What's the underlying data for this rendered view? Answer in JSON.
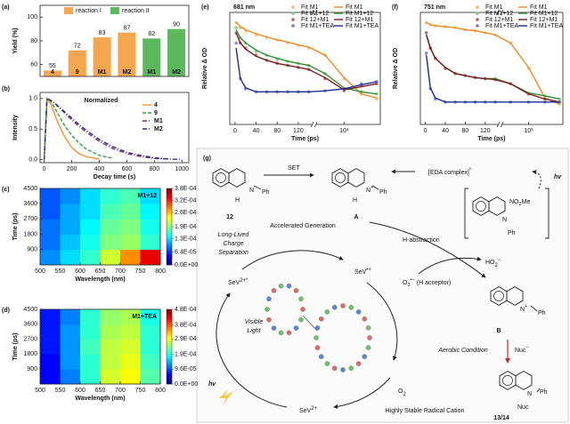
{
  "chart_data": [
    {
      "type": "bar",
      "label": "(a)",
      "ylabel": "Yield (%)",
      "categories": [
        "4",
        "9",
        "M1",
        "M2",
        "M1",
        "M2"
      ],
      "series": [
        {
          "name": "reaction I",
          "color": "#f7a650",
          "values": [
            55,
            72,
            83,
            87,
            null,
            null
          ]
        },
        {
          "name": "reaction II",
          "color": "#5cb85c",
          "values": [
            null,
            null,
            null,
            null,
            82,
            90
          ]
        }
      ],
      "ylim": [
        50,
        110
      ],
      "yticks": [
        60,
        80,
        100
      ],
      "legend": "top-right",
      "legend_columns": 2
    },
    {
      "type": "line",
      "label": "(b)",
      "xlabel": "Decay time (s)",
      "ylabel": "Intensity",
      "annotation": "Normalized",
      "x": [
        0,
        20,
        50,
        100,
        150,
        200,
        250,
        300,
        400,
        500,
        600,
        700,
        800,
        900,
        1000
      ],
      "series": [
        {
          "name": "4",
          "color": "#f0922b",
          "dash": "solid",
          "values": [
            0,
            1,
            0.9,
            0.6,
            0.37,
            0.2,
            0.1,
            0.05,
            0.01,
            null,
            null,
            null,
            null,
            null,
            null
          ]
        },
        {
          "name": "9",
          "color": "#2e9e3e",
          "dash": "dashed",
          "values": [
            0,
            1,
            0.95,
            0.75,
            0.55,
            0.4,
            0.28,
            0.18,
            0.07,
            0.02,
            null,
            null,
            null,
            null,
            null
          ]
        },
        {
          "name": "M1",
          "color": "#7b2a6e",
          "dash": "dashdot",
          "values": [
            0,
            1,
            0.97,
            0.87,
            0.76,
            0.65,
            0.55,
            0.46,
            0.3,
            0.18,
            0.1,
            0.05,
            0.02,
            0.01,
            null
          ]
        },
        {
          "name": "M2",
          "color": "#2c2c8c",
          "dash": "dashdot",
          "values": [
            0,
            1,
            0.97,
            0.88,
            0.78,
            0.68,
            0.58,
            0.49,
            0.33,
            0.21,
            0.12,
            0.07,
            0.03,
            0.01,
            0
          ]
        }
      ],
      "xlim": [
        -30,
        1050
      ],
      "xticks": [
        0,
        200,
        400,
        600,
        800,
        1000
      ],
      "ylim": [
        -0.05,
        1.1
      ],
      "yticks": [
        {
          "value": 0,
          "label": "0.0"
        },
        0.5,
        {
          "value": 1,
          "label": "1.0"
        }
      ],
      "legend": "top-right",
      "legend_columns": 1
    },
    {
      "type": "heatmap",
      "label": "(c)",
      "xlabel": "Wavelength (nm)",
      "ylabel": "Time (ps)",
      "annotation": "M1+12",
      "x": [
        525,
        575,
        625,
        675,
        725,
        775
      ],
      "y": [
        450,
        1350,
        2250,
        3150,
        4050
      ],
      "z": [
        [
          0.0001,
          0.00013,
          0.00016,
          0.00022,
          0.00028,
          0.00034
        ],
        [
          9e-05,
          0.00012,
          0.00015,
          0.00019,
          0.0002,
          0.00016
        ],
        [
          9e-05,
          0.00011,
          0.00014,
          0.00018,
          0.00019,
          0.00015
        ],
        [
          8e-05,
          0.00011,
          0.00013,
          0.00017,
          0.00018,
          0.00014
        ],
        [
          8e-05,
          0.0001,
          0.00013,
          0.00016,
          0.00017,
          0.00013
        ]
      ],
      "xlim": [
        500,
        800
      ],
      "xticks": [
        500,
        550,
        600,
        650,
        700,
        750,
        800
      ],
      "ylim": [
        0,
        4500
      ],
      "yticks": [
        900,
        1800,
        2700,
        3600,
        4500
      ],
      "zlim": [
        0,
        0.00038
      ],
      "zticks": [
        {
          "value": 0,
          "label": "0.0E+00"
        },
        {
          "value": 6.4e-05,
          "label": "6.4E-05"
        },
        {
          "value": 0.00013,
          "label": "1.3E-04"
        },
        {
          "value": 0.00019,
          "label": "1.9E-04"
        },
        {
          "value": 0.00026,
          "label": "2.6E-04"
        },
        {
          "value": 0.00032,
          "label": "3.2E-04"
        },
        {
          "value": 0.00038,
          "label": "3.8E-04"
        }
      ]
    },
    {
      "type": "heatmap",
      "label": "(d)",
      "xlabel": "Wavelength (nm)",
      "ylabel": "Time (ps)",
      "annotation": "M1+TEA",
      "x": [
        525,
        575,
        625,
        675,
        725,
        775
      ],
      "y": [
        450,
        1350,
        2250,
        3150,
        4050
      ],
      "z": [
        [
          6e-05,
          0.00012,
          0.0002,
          0.00028,
          0.0003,
          0.00022
        ],
        [
          6e-05,
          0.00013,
          0.0002,
          0.00027,
          0.00029,
          0.00021
        ],
        [
          7e-05,
          0.00013,
          0.00021,
          0.00027,
          0.00028,
          0.0002
        ],
        [
          7e-05,
          0.00013,
          0.0002,
          0.00026,
          0.00027,
          0.0002
        ],
        [
          7e-05,
          0.00012,
          0.0002,
          0.00025,
          0.00026,
          0.00019
        ]
      ],
      "xlim": [
        500,
        800
      ],
      "xticks": [
        500,
        550,
        600,
        650,
        700,
        750,
        800
      ],
      "ylim": [
        0,
        4500
      ],
      "yticks": [
        900,
        1800,
        2700,
        3600,
        4500
      ],
      "zlim": [
        0,
        0.00048
      ],
      "zticks": [
        {
          "value": 0,
          "label": "0.0E+00"
        },
        {
          "value": 9.6e-05,
          "label": "9.6E-05"
        },
        {
          "value": 0.00019,
          "label": "1.9E-04"
        },
        {
          "value": 0.00029,
          "label": "2.9E-04"
        },
        {
          "value": 0.00038,
          "label": "3.8E-04"
        },
        {
          "value": 0.00048,
          "label": "4.8E-04"
        }
      ]
    },
    {
      "type": "line",
      "label": "(e)",
      "xlabel": "Time (ps)",
      "ylabel": "Relative Δ OD",
      "annotation": "681 nm",
      "xscale": "linear-log",
      "xbreak": 150,
      "x": [
        2,
        10,
        20,
        40,
        60,
        80,
        100,
        120,
        140,
        300,
        1000,
        3000,
        8000
      ],
      "series": [
        {
          "name": "Fit M1",
          "style": "markers",
          "color": "#f5b56b",
          "values": [
            1.0,
            0.95,
            0.92,
            0.88,
            0.85,
            0.83,
            0.8,
            0.78,
            0.75,
            0.68,
            0.45,
            0.3,
            0.25
          ]
        },
        {
          "name": "Fit M1+12",
          "style": "markers",
          "color": "#7cc47c",
          "values": [
            0.95,
            0.85,
            0.8,
            0.72,
            0.68,
            0.64,
            0.62,
            0.6,
            0.58,
            0.5,
            0.35,
            0.32,
            0.3
          ]
        },
        {
          "name": "Fit 12+M1",
          "style": "markers",
          "color": "#b06060",
          "values": [
            0.9,
            0.8,
            0.75,
            0.68,
            0.63,
            0.6,
            0.58,
            0.56,
            0.54,
            0.45,
            0.33,
            0.38,
            0.4
          ]
        },
        {
          "name": "Fit M1+TEA",
          "style": "markers",
          "color": "#6f78d0",
          "values": [
            0.8,
            0.45,
            0.35,
            0.32,
            0.32,
            0.32,
            0.32,
            0.32,
            0.32,
            0.33,
            0.35,
            0.4,
            0.42
          ]
        },
        {
          "name": "Fit M1",
          "style": "line",
          "color": "#f08a24",
          "values": [
            1.0,
            0.96,
            0.93,
            0.89,
            0.86,
            0.83,
            0.81,
            0.78,
            0.76,
            0.68,
            0.46,
            0.3,
            0.26
          ]
        },
        {
          "name": "Fit M1+12",
          "style": "line",
          "color": "#2f8f2f",
          "values": [
            0.93,
            0.85,
            0.8,
            0.73,
            0.68,
            0.65,
            0.62,
            0.6,
            0.58,
            0.5,
            0.36,
            0.32,
            0.3
          ]
        },
        {
          "name": "Fit 12+M1",
          "style": "line",
          "color": "#7a1a1a",
          "values": [
            0.9,
            0.8,
            0.74,
            0.67,
            0.63,
            0.6,
            0.58,
            0.56,
            0.54,
            0.46,
            0.34,
            0.37,
            0.4
          ]
        },
        {
          "name": "Fit M1+TEA",
          "style": "line",
          "color": "#1f2a8f",
          "values": [
            0.75,
            0.45,
            0.36,
            0.32,
            0.32,
            0.32,
            0.32,
            0.32,
            0.32,
            0.33,
            0.35,
            0.39,
            0.42
          ]
        }
      ],
      "xlim": [
        -10,
        10000
      ],
      "xticks": [
        0,
        40,
        80,
        120,
        {
          "value": 1000,
          "label": "10³"
        }
      ],
      "ylim": [
        0,
        1.1
      ],
      "legend": "top-right",
      "legend_columns": 2
    },
    {
      "type": "line",
      "label": "(f)",
      "xlabel": "Time (ps)",
      "ylabel": "Relative Δ OD",
      "annotation": "751 nm",
      "xscale": "linear-log",
      "xbreak": 150,
      "x": [
        2,
        10,
        20,
        40,
        60,
        80,
        100,
        120,
        140,
        300,
        1000,
        3000,
        8000
      ],
      "series": [
        {
          "name": "Fit M1",
          "style": "markers",
          "color": "#f5b56b",
          "values": [
            1.0,
            0.98,
            0.97,
            0.96,
            0.95,
            0.93,
            0.92,
            0.9,
            0.88,
            0.8,
            0.55,
            0.25,
            0.2
          ]
        },
        {
          "name": "Fit M1+12",
          "style": "markers",
          "color": "#7cc47c",
          "values": [
            0.9,
            0.75,
            0.65,
            0.55,
            0.5,
            0.48,
            0.46,
            0.45,
            0.45,
            0.4,
            0.3,
            0.28,
            0.25
          ]
        },
        {
          "name": "Fit 12+M1",
          "style": "markers",
          "color": "#b06060",
          "values": [
            0.9,
            0.75,
            0.65,
            0.55,
            0.5,
            0.48,
            0.46,
            0.45,
            0.44,
            0.4,
            0.3,
            0.25,
            0.22
          ]
        },
        {
          "name": "Fit M1+TEA",
          "style": "markers",
          "color": "#6f78d0",
          "values": [
            0.7,
            0.35,
            0.25,
            0.22,
            0.22,
            0.22,
            0.22,
            0.22,
            0.22,
            0.22,
            0.22,
            0.22,
            0.22
          ]
        },
        {
          "name": "Fit M1",
          "style": "line",
          "color": "#f08a24",
          "values": [
            1.0,
            0.98,
            0.97,
            0.96,
            0.95,
            0.93,
            0.92,
            0.9,
            0.88,
            0.8,
            0.56,
            0.26,
            0.2
          ]
        },
        {
          "name": "Fit M1+12",
          "style": "line",
          "color": "#2f8f2f",
          "values": [
            0.88,
            0.75,
            0.65,
            0.56,
            0.5,
            0.48,
            0.46,
            0.45,
            0.45,
            0.4,
            0.31,
            0.28,
            0.25
          ]
        },
        {
          "name": "Fit 12+M1",
          "style": "line",
          "color": "#7a1a1a",
          "values": [
            0.88,
            0.75,
            0.65,
            0.56,
            0.5,
            0.48,
            0.46,
            0.45,
            0.44,
            0.4,
            0.3,
            0.25,
            0.22
          ]
        },
        {
          "name": "Fit M1+TEA",
          "style": "line",
          "color": "#1f2a8f",
          "values": [
            0.68,
            0.36,
            0.26,
            0.22,
            0.22,
            0.22,
            0.22,
            0.22,
            0.22,
            0.22,
            0.22,
            0.22,
            0.22
          ]
        }
      ],
      "xlim": [
        -10,
        10000
      ],
      "xticks": [
        0,
        40,
        80,
        120,
        {
          "value": 1000,
          "label": "10³"
        }
      ],
      "ylim": [
        0,
        1.1
      ],
      "legend": "top-right",
      "legend_columns": 2
    }
  ],
  "scheme": {
    "label": "(g)",
    "set": "SET",
    "compound_12": "12",
    "n_12": "N",
    "ph_12": "Ph",
    "h_12": "H",
    "compound_A": "A",
    "n_A": [
      {
        "text": "N"
      },
      {
        "text": "+",
        "pos": "sup"
      }
    ],
    "ph_A": "Ph",
    "h_A": "H",
    "eda": [
      {
        "text": "[EDA complex]"
      },
      {
        "text": "*",
        "pos": "sup"
      }
    ],
    "hv_top": "hv",
    "n_eda": "N",
    "no2me": [
      {
        "text": "NO"
      },
      {
        "text": "2",
        "pos": "sub"
      },
      {
        "text": "Me"
      }
    ],
    "ph_eda": "Ph",
    "accelerated": "Accelerated Generation",
    "h_abstraction": "H-abstraction",
    "long_lived": [
      "Long-Lived",
      "Charge",
      "Separation"
    ],
    "sev_excited": [
      {
        "text": "SeV"
      },
      {
        "text": "2+*",
        "pos": "sup"
      }
    ],
    "sev_radical": [
      {
        "text": "SeV"
      },
      {
        "text": "•+",
        "pos": "sup"
      }
    ],
    "superoxide": [
      {
        "text": "O"
      },
      {
        "text": "2",
        "pos": "sub"
      },
      {
        "text": "•−",
        "pos": "sup"
      },
      {
        "text": " (H acceptor)"
      }
    ],
    "ho2": [
      {
        "text": "HO"
      },
      {
        "text": "2",
        "pos": "sub"
      },
      {
        "text": "−",
        "pos": "sup"
      }
    ],
    "compound_B": "B",
    "n_B": [
      {
        "text": "N"
      },
      {
        "text": "+",
        "pos": "sup"
      }
    ],
    "ph_B": "Ph",
    "visible_light": [
      "Visible",
      "Light"
    ],
    "aerobic": "Aerobic Condition",
    "nuc": [
      {
        "text": "Nuc"
      },
      {
        "text": "−",
        "pos": "sup"
      }
    ],
    "hv_bottom": "hv",
    "o2": [
      {
        "text": "O"
      },
      {
        "text": "2",
        "pos": "sub"
      }
    ],
    "sev_ground": [
      {
        "text": "SeV"
      },
      {
        "text": "2+",
        "pos": "sup"
      }
    ],
    "stable": "Highly Stable Radical Cation",
    "product": "13/14",
    "n_P": "N",
    "ph_P": "Ph",
    "nuc_P": "Nuc"
  }
}
